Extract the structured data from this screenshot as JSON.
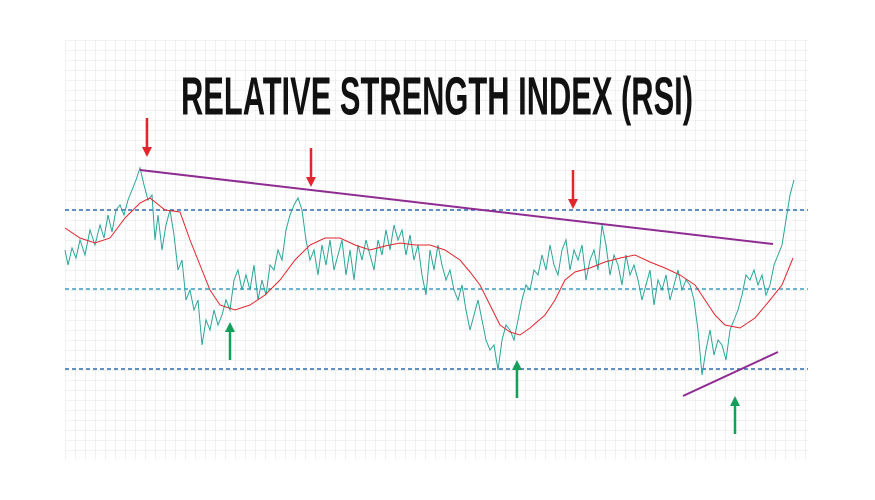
{
  "title": "RELATIVE STRENGTH INDEX (RSI)"
}
